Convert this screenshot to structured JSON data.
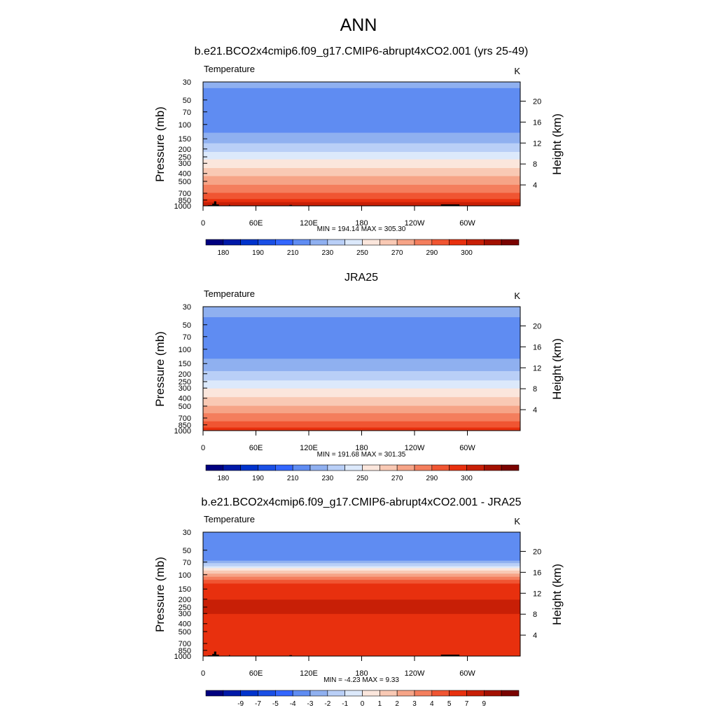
{
  "figure": {
    "title": "ANN"
  },
  "colors": {
    "temperature_levels": [
      "#00007f",
      "#0019a8",
      "#0033cc",
      "#1a4fe5",
      "#3366ff",
      "#5f8cf2",
      "#8fb0f0",
      "#b9cff7",
      "#dce9fb",
      "#fbe6dc",
      "#f9c9b4",
      "#f6a487",
      "#f47e5d",
      "#f05532",
      "#e8300e",
      "#c81f06",
      "#a31000",
      "#7a0300"
    ],
    "difference_levels": [
      "#00007f",
      "#0019a8",
      "#0033cc",
      "#1a4fe5",
      "#3366ff",
      "#5f8cf2",
      "#8fb0f0",
      "#b9cff7",
      "#dce9fb",
      "#fbe6dc",
      "#f9c9b4",
      "#f6a487",
      "#f47e5d",
      "#f05532",
      "#e8300e",
      "#c81f06",
      "#a31000",
      "#7a0300"
    ],
    "terrain": "#000000"
  },
  "chart_data": [
    {
      "type": "heatmap",
      "title": "b.e21.BCO2x4cmip6.f09_g17.CMIP6-abrupt4xCO2.001 (yrs 25-49)",
      "left_label": "Temperature",
      "units": "K",
      "ylabel": "Pressure (mb)",
      "ylabel_right": "Height (km)",
      "x_ticks": [
        "0",
        "60E",
        "120E",
        "180",
        "120W",
        "60W"
      ],
      "x_values": [
        0,
        60,
        120,
        180,
        240,
        300
      ],
      "xlim": [
        0,
        360
      ],
      "y_ticks": [
        "30",
        "50",
        "70",
        "100",
        "150",
        "200",
        "250",
        "300",
        "400",
        "500",
        "700",
        "850",
        "1000"
      ],
      "y_values": [
        30,
        50,
        70,
        100,
        150,
        200,
        250,
        300,
        400,
        500,
        700,
        850,
        1000
      ],
      "ylim": [
        30,
        1000
      ],
      "height_ticks": [
        "4",
        "8",
        "12",
        "16",
        "20"
      ],
      "height_values": [
        4,
        8,
        12,
        16,
        20
      ],
      "min_max_text": "MIN = 194.14  MAX = 305.30",
      "min": 194.14,
      "max": 305.3,
      "colorbar_labels": [
        "180",
        "190",
        "210",
        "230",
        "250",
        "270",
        "290",
        "300"
      ],
      "profile": [
        {
          "p": 30,
          "v": 212
        },
        {
          "p": 50,
          "v": 206
        },
        {
          "p": 70,
          "v": 202
        },
        {
          "p": 100,
          "v": 204
        },
        {
          "p": 130,
          "v": 211
        },
        {
          "p": 150,
          "v": 216
        },
        {
          "p": 200,
          "v": 226
        },
        {
          "p": 250,
          "v": 237
        },
        {
          "p": 300,
          "v": 245
        },
        {
          "p": 400,
          "v": 257
        },
        {
          "p": 500,
          "v": 266
        },
        {
          "p": 700,
          "v": 281
        },
        {
          "p": 850,
          "v": 292
        },
        {
          "p": 1000,
          "v": 302
        }
      ]
    },
    {
      "type": "heatmap",
      "title": "JRA25",
      "left_label": "Temperature",
      "units": "K",
      "ylabel": "Pressure (mb)",
      "ylabel_right": "Height (km)",
      "x_ticks": [
        "0",
        "60E",
        "120E",
        "180",
        "120W",
        "60W"
      ],
      "x_values": [
        0,
        60,
        120,
        180,
        240,
        300
      ],
      "xlim": [
        0,
        360
      ],
      "y_ticks": [
        "30",
        "50",
        "70",
        "100",
        "150",
        "200",
        "250",
        "300",
        "400",
        "500",
        "700",
        "850",
        "1000"
      ],
      "y_values": [
        30,
        50,
        70,
        100,
        150,
        200,
        250,
        300,
        400,
        500,
        700,
        850,
        1000
      ],
      "ylim": [
        30,
        1000
      ],
      "height_ticks": [
        "4",
        "8",
        "12",
        "16",
        "20"
      ],
      "height_values": [
        4,
        8,
        12,
        16,
        20
      ],
      "min_max_text": "MIN = 191.68  MAX = 301.35",
      "min": 191.68,
      "max": 301.35,
      "colorbar_labels": [
        "180",
        "190",
        "210",
        "230",
        "250",
        "270",
        "290",
        "300"
      ],
      "profile": [
        {
          "p": 30,
          "v": 214
        },
        {
          "p": 50,
          "v": 207
        },
        {
          "p": 70,
          "v": 203
        },
        {
          "p": 100,
          "v": 204
        },
        {
          "p": 130,
          "v": 210
        },
        {
          "p": 150,
          "v": 215
        },
        {
          "p": 200,
          "v": 222
        },
        {
          "p": 250,
          "v": 232
        },
        {
          "p": 300,
          "v": 240
        },
        {
          "p": 400,
          "v": 252
        },
        {
          "p": 500,
          "v": 261
        },
        {
          "p": 700,
          "v": 276
        },
        {
          "p": 850,
          "v": 286
        },
        {
          "p": 1000,
          "v": 296
        }
      ]
    },
    {
      "type": "heatmap",
      "title": "b.e21.BCO2x4cmip6.f09_g17.CMIP6-abrupt4xCO2.001 - JRA25",
      "left_label": "Temperature",
      "units": "K",
      "ylabel": "Pressure (mb)",
      "ylabel_right": "Height (km)",
      "x_ticks": [
        "0",
        "60E",
        "120E",
        "180",
        "120W",
        "60W"
      ],
      "x_values": [
        0,
        60,
        120,
        180,
        240,
        300
      ],
      "xlim": [
        0,
        360
      ],
      "y_ticks": [
        "30",
        "50",
        "70",
        "100",
        "150",
        "200",
        "250",
        "300",
        "400",
        "500",
        "700",
        "850",
        "1000"
      ],
      "y_values": [
        30,
        50,
        70,
        100,
        150,
        200,
        250,
        300,
        400,
        500,
        700,
        850,
        1000
      ],
      "ylim": [
        30,
        1000
      ],
      "height_ticks": [
        "4",
        "8",
        "12",
        "16",
        "20"
      ],
      "height_values": [
        4,
        8,
        12,
        16,
        20
      ],
      "min_max_text": "MIN =  -4.23  MAX =   9.33",
      "min": -4.23,
      "max": 9.33,
      "colorbar_labels": [
        "-9",
        "-7",
        "-5",
        "-4",
        "-3",
        "-2",
        "-1",
        "0",
        "1",
        "2",
        "3",
        "4",
        "5",
        "7",
        "9"
      ],
      "profile": [
        {
          "p": 30,
          "v": -3.5
        },
        {
          "p": 50,
          "v": -3.5
        },
        {
          "p": 65,
          "v": -3.2
        },
        {
          "p": 75,
          "v": -1.5
        },
        {
          "p": 85,
          "v": 0.5
        },
        {
          "p": 100,
          "v": 2.5
        },
        {
          "p": 120,
          "v": 4.5
        },
        {
          "p": 150,
          "v": 6.2
        },
        {
          "p": 200,
          "v": 7
        },
        {
          "p": 300,
          "v": 7
        },
        {
          "p": 400,
          "v": 6.2
        },
        {
          "p": 500,
          "v": 6
        },
        {
          "p": 700,
          "v": 5.5
        },
        {
          "p": 850,
          "v": 5.2
        },
        {
          "p": 1000,
          "v": 5
        }
      ]
    }
  ]
}
